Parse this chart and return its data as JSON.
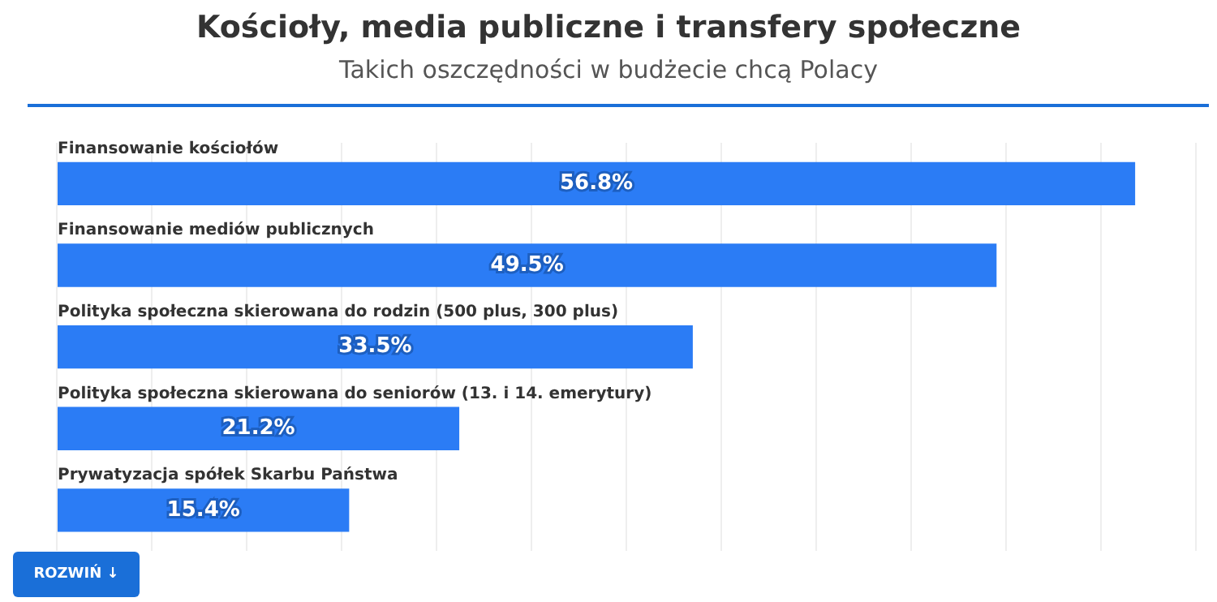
{
  "chart_data": {
    "type": "bar",
    "orientation": "horizontal",
    "title": "Kościoły, media publiczne i transfery społeczne",
    "subtitle": "Takich oszczędności w budżecie chcą Polacy",
    "categories": [
      "Finansowanie kościołów",
      "Finansowanie mediów publicznych",
      "Polityka społeczna skierowana do rodzin (500 plus, 300 plus)",
      "Polityka społeczna skierowana do seniorów (13. i 14. emerytury)",
      "Prywatyzacja spółek Skarbu Państwa"
    ],
    "values": [
      56.8,
      49.5,
      33.5,
      21.2,
      15.4
    ],
    "value_labels": [
      "56.8%",
      "49.5%",
      "33.5%",
      "21.2%",
      "15.4%"
    ],
    "color": "#2b7cf5",
    "xlim": [
      0,
      60
    ],
    "xticks": [
      {
        "value": 0,
        "label": null
      },
      {
        "value": 5,
        "label": null
      },
      {
        "value": 10,
        "label": null
      },
      {
        "value": 15,
        "label": null
      },
      {
        "value": 20,
        "label": null
      },
      {
        "value": 25,
        "label": null
      },
      {
        "value": 30,
        "label": null
      },
      {
        "value": 35,
        "label": null
      },
      {
        "value": 40,
        "label": null
      },
      {
        "value": 45,
        "label": null
      },
      {
        "value": 50,
        "label": null
      },
      {
        "value": 55,
        "label": null
      },
      {
        "value": 60,
        "label": null
      }
    ],
    "grid": "x",
    "legend": false,
    "annotations": [
      "ROZWIŃ ↓"
    ]
  }
}
